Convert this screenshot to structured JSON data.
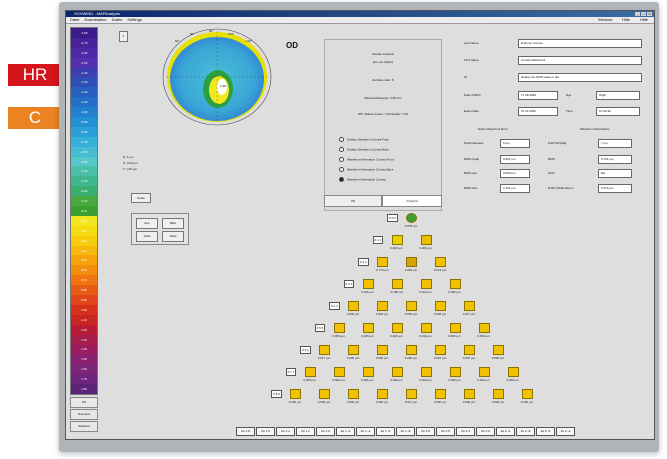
{
  "badges": {
    "hr": "HR",
    "c": "C"
  },
  "window": {
    "title": "SCHWIND - MAPAnalysis",
    "buttons": [
      "_",
      "□",
      "X"
    ]
  },
  "menu": {
    "left": [
      "Datei",
      "Examination",
      "Daten",
      "Settings"
    ],
    "right": [
      "Window",
      "Hilfe",
      "Hilfe"
    ]
  },
  "scale": {
    "values": [
      "-1.80",
      "-1.70",
      "-1.60",
      "-1.50",
      "-1.40",
      "-1.30",
      "-1.20",
      "-1.10",
      "-1.00",
      "-0.90",
      "-0.80",
      "-0.70",
      "-0.60",
      "-0.50",
      "-0.40",
      "-0.30",
      "-0.20",
      "-0.10",
      "0.00",
      "0.10",
      "0.20",
      "0.30",
      "0.40",
      "0.50",
      "0.60",
      "0.70",
      "0.80",
      "0.90",
      "1.00",
      "1.10",
      "1.20",
      "1.30",
      "1.40",
      "1.50",
      "1.60",
      "1.70",
      "1.80"
    ],
    "colors": [
      "#3b1a8a",
      "#47229a",
      "#4f2aa8",
      "#5530b0",
      "#3c3fb0",
      "#2e4fb8",
      "#2860c0",
      "#2470c8",
      "#2380d0",
      "#2490d4",
      "#2aa0d8",
      "#35b0d8",
      "#45bcd2",
      "#55c8cc",
      "#48c0a8",
      "#3fb890",
      "#3ab070",
      "#4aa840",
      "#3aa030",
      "#f2e820",
      "#f4dc10",
      "#f6cc0c",
      "#f6b80a",
      "#f6a20a",
      "#f48c0c",
      "#f07410",
      "#e85c14",
      "#e04618",
      "#d8301c",
      "#c82420",
      "#b81c34",
      "#a81c4c",
      "#9c1c60",
      "#8c2070",
      "#7c2478",
      "#6c247c",
      "#5c2478"
    ]
  },
  "scale_buttons": {
    "ref": "2/3",
    "analysis": "Overview",
    "statistics": "Statistics"
  },
  "map": {
    "eye": "OD",
    "scale_button": "Scale",
    "legend": [
      "R: 1 µm",
      "H: 0.00 µm",
      "T: 1.00 µm"
    ],
    "buttons": [
      "Zoo",
      "REA",
      "Ablat",
      "Ablat"
    ],
    "top_labels": [
      "90°",
      "80°",
      "100°",
      "60°",
      "120°"
    ],
    "center_value": "1.38"
  },
  "mid_panel": {
    "lines": [
      "Zernike Analysis",
      "(Lin. de Optico)",
      "Zernike order: 8",
      "Maximal Diameter: 6.00 mm",
      "Wfr. Values  Center: 7.00   Apodiz: 7.00"
    ],
    "options": [
      "Surface Elevation Cornea Front",
      "Surface Elevation Cornea Back",
      "Wavefront Aberration Cornea Front",
      "Wavefront Aberration Cornea Back",
      "Wavefront Aberration Cornea"
    ],
    "tabs": [
      "OS",
      "Pyramid"
    ]
  },
  "patient": {
    "labels": [
      "Last Name",
      "First Name",
      "ID",
      "Date of Birth",
      "Exam Date"
    ],
    "values": [
      "E-Demo Cornea",
      "Cornea Wavefront",
      "display the RMS value in dia",
      "17.08.1996",
      "07.11.2006"
    ],
    "side_labels": [
      "Eye",
      "Time"
    ],
    "side_values": [
      "Right",
      "10:42:36"
    ]
  },
  "zernike": {
    "h1": "Entire Wavefront Error",
    "h2": "Wavefront Aberrations",
    "left_labels": [
      "Pupil Diameter",
      "RMS (total)",
      "RMS ulev",
      "RMS sher"
    ],
    "left_values": [
      "6 µm",
      "0.841 µm",
      "0.849 µm",
      "0.151 µm"
    ],
    "right_labels": [
      "Pupil Schulfig",
      "RMS",
      "HOA",
      "R-RP (Ablat Aberr.)"
    ],
    "right_values": [
      "7 µm",
      "0.731 µm",
      "RH",
      "0.379 µm"
    ]
  },
  "pyramid": {
    "order_labels": [
      "Z 0 0",
      "Z 1 1",
      "Z 2 2",
      "Z 3 3",
      "Z 4 4",
      "Z 5 5",
      "Z 6 6",
      "Z 7 7",
      "Z 8 8"
    ],
    "values": [
      [
        "0.078 µm"
      ],
      [
        "0.000 µm",
        "0.000 µm"
      ],
      [
        "-0.179 µm",
        "0.053 µm",
        "0.213 µm"
      ],
      [
        "0.026 µm",
        "-0.180 µm",
        "0.024 µm",
        "0.052 µm"
      ],
      [
        "0.040 µm",
        "0.003 µm",
        "0.000 µm",
        "0.028 µm",
        "0.017 µm"
      ],
      [
        "0.005 µm",
        "0.026 µm",
        "0.000 µm",
        "0.012 µm",
        "0.003 µm",
        "0.000 µm"
      ],
      [
        "0.017 µm",
        "0.000 µm",
        "0.000 µm",
        "0.000 µm",
        "0.010 µm",
        "0.007 µm",
        "0.000 µm"
      ],
      [
        "0.000 µm",
        "0.000 µm",
        "0.001 µm",
        "0.000 µm",
        "0.000 µm",
        "0.000 µm",
        "0.000 µm",
        "0.000 µm"
      ],
      [
        "0.000 µm",
        "0.000 µm",
        "0.000 µm",
        "0.000 µm",
        "0.011 µm",
        "0.000 µm",
        "0.000 µm",
        "0.000 µm",
        "0.000 µm"
      ]
    ],
    "bottom": [
      "Ze 1 8",
      "Ze 1 6",
      "Ze 1 4",
      "Ze 1 2",
      "Ze 1 0",
      "Ze 1 -2",
      "Ze 1 -4",
      "Ze 1 -6",
      "Ze 1 -8",
      "Ze 2 8",
      "Ze 2 6",
      "Ze 2 4",
      "Ze 2 0",
      "Ze 2 -4",
      "Ze 2 -8",
      "Ze 2 -6",
      "Ze 2 -2"
    ]
  }
}
